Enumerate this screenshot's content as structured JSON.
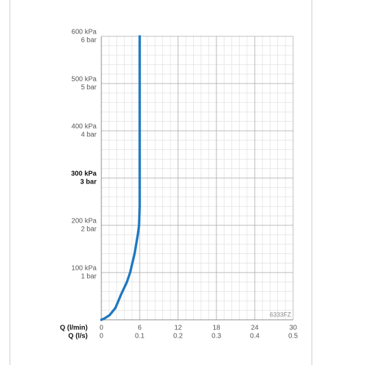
{
  "chart_data": {
    "type": "line",
    "x_label": "Q (l/min)",
    "x2_label": "Q (l/s)",
    "annotation": "6333FZ",
    "xlim": [
      0,
      30
    ],
    "ylim": [
      0,
      600
    ],
    "xticks": [
      0,
      6,
      12,
      18,
      24,
      30
    ],
    "x2ticks": [
      {
        "value": 0,
        "label": "0"
      },
      {
        "value": 6,
        "label": "0.1"
      },
      {
        "value": 12,
        "label": "0.2"
      },
      {
        "value": 18,
        "label": "0.3"
      },
      {
        "value": 24,
        "label": "0.4"
      },
      {
        "value": 30,
        "label": "0.5"
      }
    ],
    "yticks": [
      {
        "value": 100,
        "label": "100 kPa"
      },
      {
        "value": 200,
        "label": "200 kPa"
      },
      {
        "value": 300,
        "label": "300 kPa"
      },
      {
        "value": 400,
        "label": "400 kPa"
      },
      {
        "value": 500,
        "label": "500 kPa"
      },
      {
        "value": 600,
        "label": "600 kPa"
      }
    ],
    "y2ticks": [
      {
        "value": 100,
        "label": "1 bar"
      },
      {
        "value": 200,
        "label": "2 bar"
      },
      {
        "value": 300,
        "label": "3 bar"
      },
      {
        "value": 400,
        "label": "4 bar"
      },
      {
        "value": 500,
        "label": "5 bar"
      },
      {
        "value": 600,
        "label": "6 bar"
      }
    ],
    "bold_ytick": 300,
    "grid": true,
    "x_minor_step": 1.2,
    "y_minor_step": 20,
    "series": [
      {
        "color": "#1f78c1",
        "x": [
          0,
          0.5,
          1.3,
          2.2,
          3.1,
          4,
          4.5,
          5.2,
          5.7,
          5.9,
          6,
          6
        ],
        "values": [
          0,
          3,
          10,
          25,
          54,
          80,
          100,
          140,
          180,
          200,
          240,
          600
        ]
      }
    ]
  }
}
